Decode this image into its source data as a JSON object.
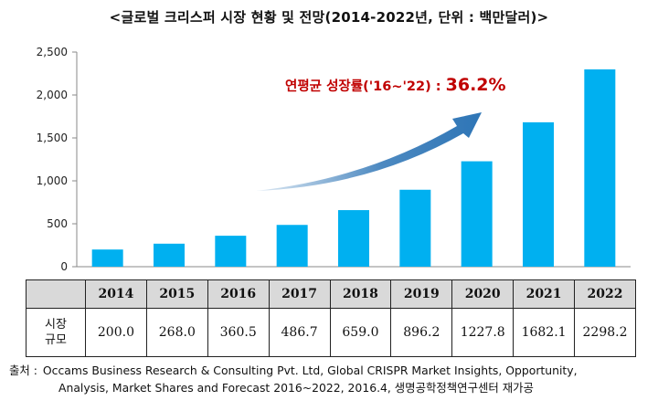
{
  "title": "<글로벌 크리스퍼 시장 현황 및 전망(2014-2022년, 단위 : 백만달러)>",
  "chart_data": {
    "type": "bar",
    "categories": [
      "2014",
      "2015",
      "2016",
      "2017",
      "2018",
      "2019",
      "2020",
      "2021",
      "2022"
    ],
    "values": [
      200.0,
      268.0,
      360.5,
      486.7,
      659.0,
      896.2,
      1227.8,
      1682.1,
      2298.2
    ],
    "ylim": [
      0,
      2500
    ],
    "yticks": [
      0,
      500,
      1000,
      1500,
      2000,
      2500
    ],
    "ytick_labels": [
      "0",
      "500",
      "1,000",
      "1,500",
      "2,000",
      "2,500"
    ],
    "bar_color": "#00b0f0",
    "grid": false,
    "annotation": {
      "label": "연평균 성장률('16~'22) : ",
      "value": "36.2%",
      "color": "#c00000"
    },
    "arrow_color": "#2e75b6"
  },
  "table": {
    "row_label": [
      "시장",
      "규모"
    ],
    "values": [
      "200.0",
      "268.0",
      "360.5",
      "486.7",
      "659.0",
      "896.2",
      "1227.8",
      "1682.1",
      "2298.2"
    ]
  },
  "source": {
    "lead": "출처 :",
    "line1": "Occams Business Research & Consulting Pvt. Ltd, Global CRISPR Market Insights, Opportunity,",
    "line2": "Analysis, Market Shares and Forecast 2016~2022, 2016.4, 생명공학정책연구센터 재가공"
  }
}
